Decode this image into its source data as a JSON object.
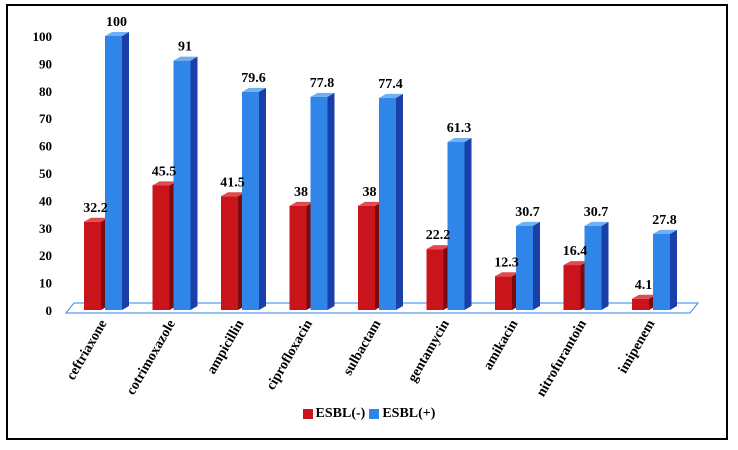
{
  "chart_data": {
    "type": "bar",
    "categories": [
      "ceftriaxone",
      "cotrimoxazole",
      "ampicillin",
      "ciprofloxacin",
      "sulbactam",
      "gentamycin",
      "amikacin",
      "nitrofurantoin",
      "imipenem"
    ],
    "series": [
      {
        "name": "ESBL(-)",
        "values": [
          32.2,
          45.5,
          41.5,
          38,
          38,
          22.2,
          12.3,
          16.4,
          4.1
        ],
        "labels": [
          "32.2",
          "45.5",
          "41.5",
          "38",
          "38",
          "22.2",
          "12.3",
          "16.4",
          "4.1"
        ],
        "color": "#c8141a"
      },
      {
        "name": "ESBL(+)",
        "values": [
          100,
          91,
          79.6,
          77.8,
          77.4,
          61.3,
          30.7,
          30.7,
          27.8
        ],
        "labels": [
          "100",
          "91",
          "79.6",
          "77.8",
          "77.4",
          "61.3",
          "30.7",
          "30.7",
          "27.8"
        ],
        "color": "#2f86e8"
      }
    ],
    "ylim": [
      0,
      100
    ],
    "yticks": [
      "0",
      "10",
      "20",
      "30",
      "40",
      "50",
      "60",
      "70",
      "80",
      "90",
      "100"
    ],
    "grid": false,
    "legend_position": "bottom",
    "title": "",
    "xlabel": "",
    "ylabel": ""
  },
  "colors": {
    "floor_fill": "#ffffff",
    "floor_stroke": "#2f86e8",
    "red_side": "#7a0a0e",
    "red_top": "#e24a4f",
    "blue_side": "#1a3fa8",
    "blue_top": "#6fb0f5"
  }
}
